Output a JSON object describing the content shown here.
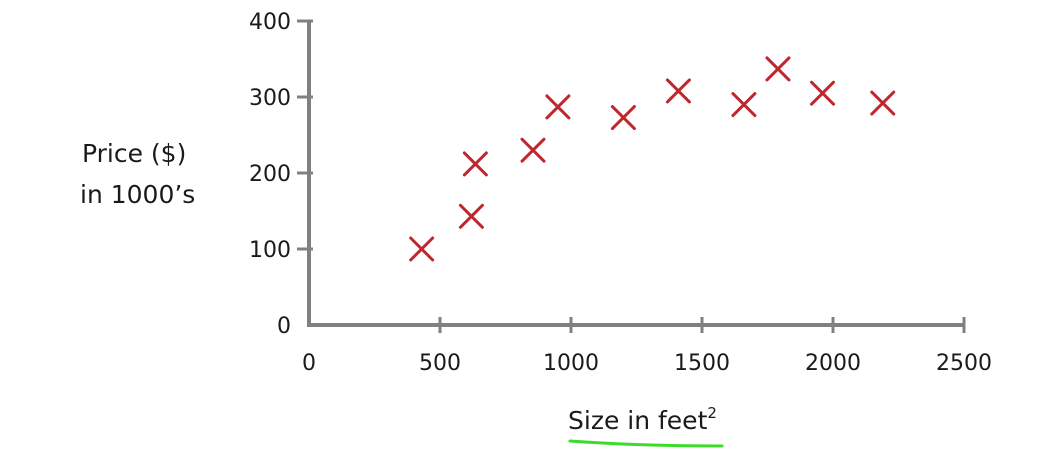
{
  "chart_data": {
    "type": "scatter",
    "marker": "x",
    "xlabel": "Size in feet",
    "xlabel_superscript": "2",
    "ylabel_lines": [
      "Price ($)",
      "in 1000’s"
    ],
    "xlim": [
      0,
      2500
    ],
    "ylim": [
      0,
      400
    ],
    "x_ticks": [
      0,
      500,
      1000,
      1500,
      2000,
      2500
    ],
    "y_ticks": [
      0,
      100,
      200,
      300,
      400
    ],
    "grid": false,
    "series": [
      {
        "color": "#c0262d",
        "points": [
          {
            "x": 430,
            "y": 100
          },
          {
            "x": 620,
            "y": 143
          },
          {
            "x": 635,
            "y": 212
          },
          {
            "x": 855,
            "y": 230
          },
          {
            "x": 950,
            "y": 287
          },
          {
            "x": 1200,
            "y": 273
          },
          {
            "x": 1410,
            "y": 308
          },
          {
            "x": 1660,
            "y": 290
          },
          {
            "x": 1790,
            "y": 337
          },
          {
            "x": 1960,
            "y": 305
          },
          {
            "x": 2190,
            "y": 292
          }
        ]
      }
    ],
    "axis_color": "#808080",
    "underline_color": "#3ddc2b"
  }
}
